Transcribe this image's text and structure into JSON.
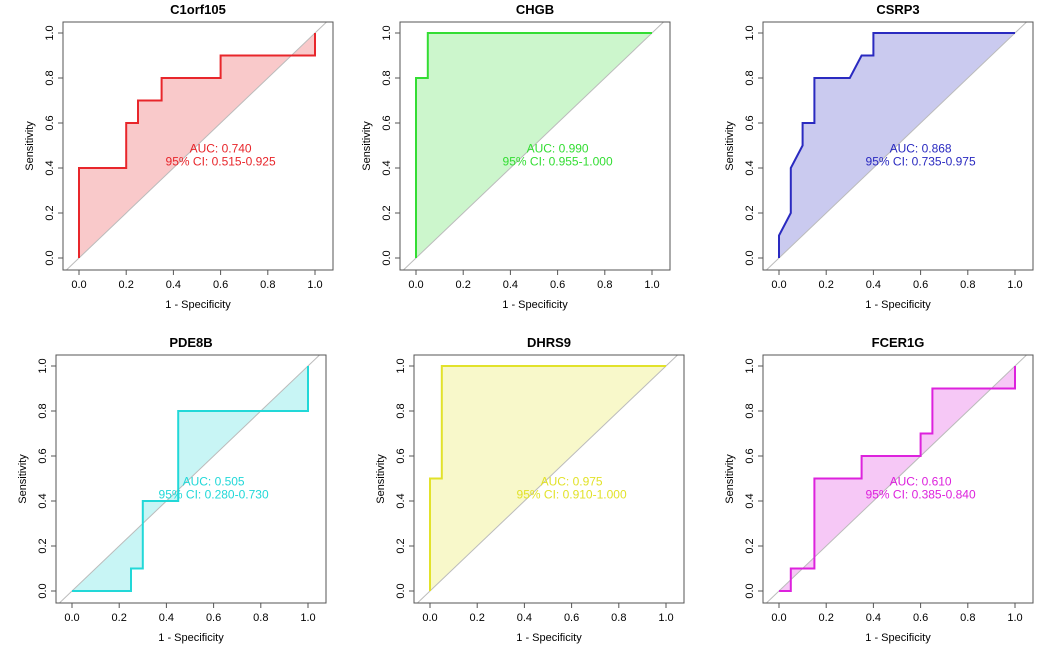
{
  "chart_data": [
    {
      "type": "line",
      "title": "C1orf105",
      "xlabel": "1 - Specificity",
      "ylabel": "Sensitivity",
      "xlim": [
        0,
        1
      ],
      "ylim": [
        0,
        1
      ],
      "color": "#e8262b",
      "auc_label": "AUC: 0.740",
      "ci_label": "95% CI: 0.515-0.925",
      "x": [
        0,
        0,
        0.2,
        0.2,
        0.25,
        0.25,
        0.35,
        0.35,
        0.6,
        0.6,
        1,
        1
      ],
      "y": [
        0,
        0.4,
        0.4,
        0.6,
        0.6,
        0.7,
        0.7,
        0.8,
        0.8,
        0.9,
        0.9,
        1
      ]
    },
    {
      "type": "line",
      "title": "CHGB",
      "xlabel": "1 - Specificity",
      "ylabel": "Sensitivity",
      "xlim": [
        0,
        1
      ],
      "ylim": [
        0,
        1
      ],
      "color": "#33dd33",
      "auc_label": "AUC: 0.990",
      "ci_label": "95% CI: 0.955-1.000",
      "x": [
        0,
        0,
        0.05,
        0.05,
        1
      ],
      "y": [
        0,
        0.8,
        0.8,
        1,
        1
      ]
    },
    {
      "type": "line",
      "title": "CSRP3",
      "xlabel": "1 - Specificity",
      "ylabel": "Sensitivity",
      "xlim": [
        0,
        1
      ],
      "ylim": [
        0,
        1
      ],
      "color": "#2a2ac0",
      "auc_label": "AUC: 0.868",
      "ci_label": "95% CI: 0.735-0.975",
      "x": [
        0,
        0,
        0.05,
        0.05,
        0.1,
        0.1,
        0.15,
        0.15,
        0.3,
        0.35,
        0.4,
        0.4,
        1
      ],
      "y": [
        0,
        0.1,
        0.2,
        0.4,
        0.5,
        0.6,
        0.6,
        0.8,
        0.8,
        0.9,
        0.9,
        1,
        1
      ]
    },
    {
      "type": "line",
      "title": "PDE8B",
      "xlabel": "1 - Specificity",
      "ylabel": "Sensitivity",
      "xlim": [
        0,
        1
      ],
      "ylim": [
        0,
        1
      ],
      "color": "#22d8d8",
      "auc_label": "AUC: 0.505",
      "ci_label": "95% CI: 0.280-0.730",
      "x": [
        0,
        0.25,
        0.25,
        0.3,
        0.3,
        0.45,
        0.45,
        1,
        1
      ],
      "y": [
        0,
        0,
        0.1,
        0.1,
        0.4,
        0.4,
        0.8,
        0.8,
        1
      ]
    },
    {
      "type": "line",
      "title": "DHRS9",
      "xlabel": "1 - Specificity",
      "ylabel": "Sensitivity",
      "xlim": [
        0,
        1
      ],
      "ylim": [
        0,
        1
      ],
      "color": "#e2e22a",
      "auc_label": "AUC: 0.975",
      "ci_label": "95% CI: 0.910-1.000",
      "x": [
        0,
        0,
        0.05,
        0.05,
        1
      ],
      "y": [
        0,
        0.5,
        0.5,
        1,
        1
      ]
    },
    {
      "type": "line",
      "title": "FCER1G",
      "xlabel": "1 - Specificity",
      "ylabel": "Sensitivity",
      "xlim": [
        0,
        1
      ],
      "ylim": [
        0,
        1
      ],
      "color": "#dd22dd",
      "auc_label": "AUC: 0.610",
      "ci_label": "95% CI: 0.385-0.840",
      "x": [
        0,
        0.05,
        0.05,
        0.15,
        0.15,
        0.35,
        0.35,
        0.6,
        0.6,
        0.65,
        0.65,
        1,
        1
      ],
      "y": [
        0,
        0,
        0.1,
        0.1,
        0.5,
        0.5,
        0.6,
        0.6,
        0.7,
        0.7,
        0.9,
        0.9,
        1
      ]
    }
  ],
  "ticks": [
    "0.0",
    "0.2",
    "0.4",
    "0.6",
    "0.8",
    "1.0"
  ]
}
